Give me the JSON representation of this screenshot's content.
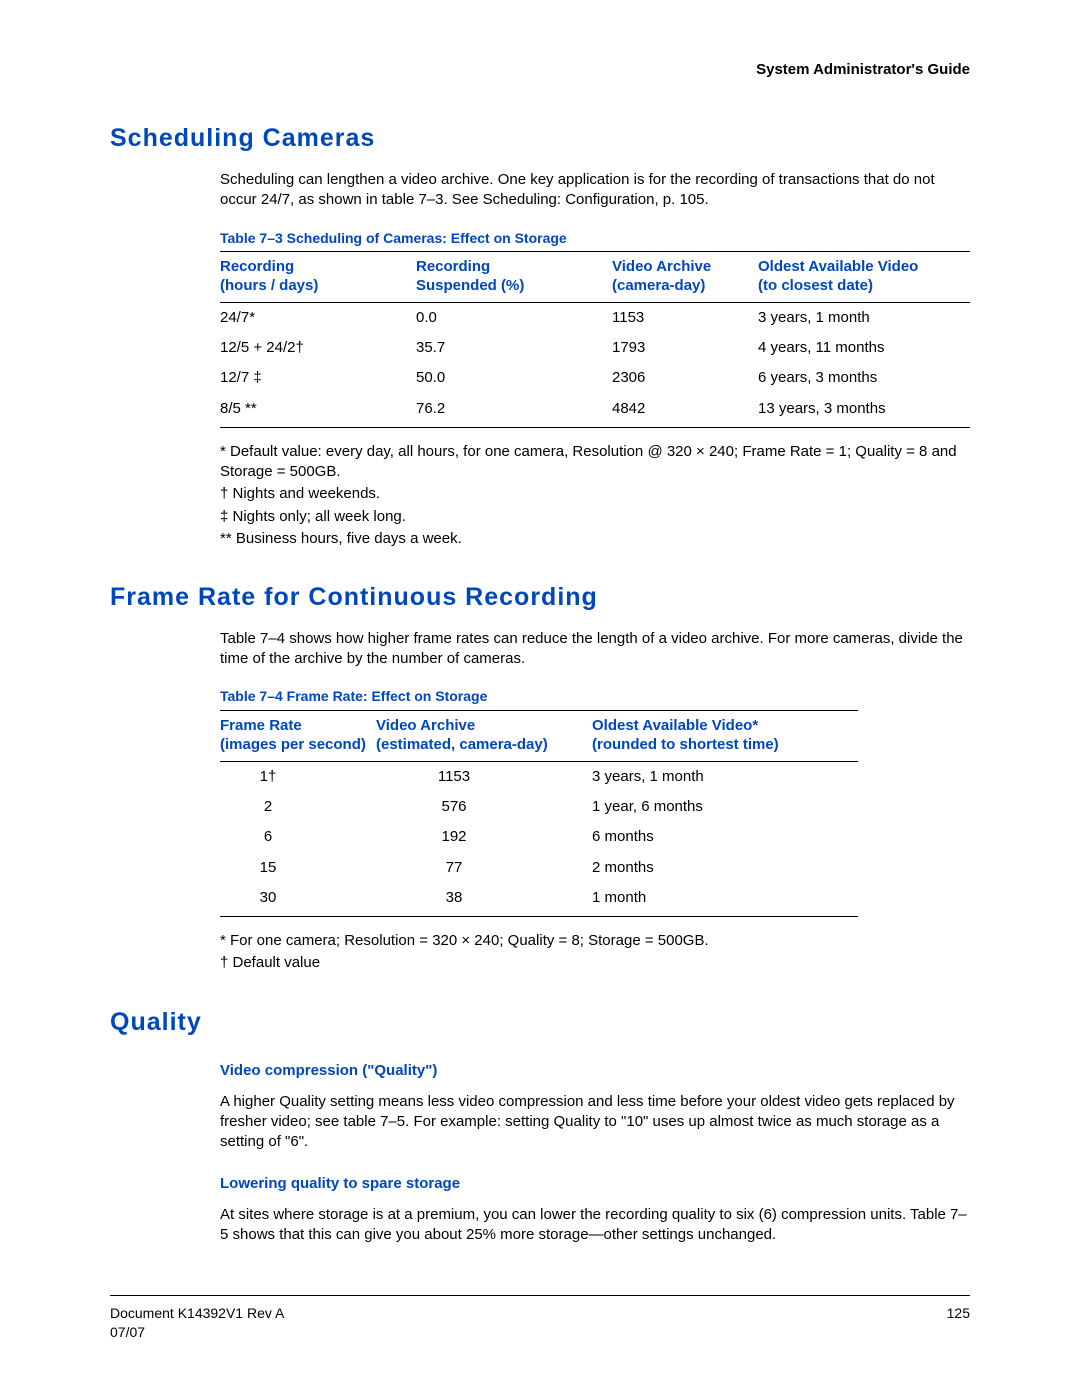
{
  "header": {
    "right": "System Administrator's Guide"
  },
  "s1": {
    "title": "Scheduling Cameras",
    "intro": "Scheduling can lengthen a video archive. One key application is for the recording of transactions that do not occur 24/7, as shown in table 7–3. See Scheduling: Configuration, p. 105.",
    "caption": "Table 7–3   Scheduling of Cameras: Effect on Storage",
    "cols": {
      "c1a": "Recording",
      "c1b": "(hours / days)",
      "c2a": "Recording",
      "c2b": "Suspended (%)",
      "c3a": "Video Archive",
      "c3b": "(camera-day)",
      "c4a": "Oldest Available Video",
      "c4b": "(to closest date)"
    },
    "rows": [
      {
        "a": "24/7*",
        "b": "0.0",
        "c": "1153",
        "d": "3 years, 1 month"
      },
      {
        "a": "12/5 + 24/2†",
        "b": "35.7",
        "c": "1793",
        "d": "4 years, 11 months"
      },
      {
        "a": "12/7 ‡",
        "b": "50.0",
        "c": "2306",
        "d": "6 years, 3 months"
      },
      {
        "a": "8/5 **",
        "b": "76.2",
        "c": "4842",
        "d": "13 years, 3 months"
      }
    ],
    "fn1": "* Default value: every day, all hours, for one camera, Resolution @ 320 × 240; Frame Rate = 1; Quality = 8 and Storage = 500GB.",
    "fn2": "† Nights and weekends.",
    "fn3": "‡ Nights only; all week long.",
    "fn4": "** Business hours, five days a week."
  },
  "s2": {
    "title": "Frame Rate for Continuous Recording",
    "intro": "Table 7–4 shows how higher frame rates can reduce the length of a video archive. For more cameras, divide the time of the archive by the number of cameras.",
    "caption": "Table 7–4   Frame Rate: Effect on Storage",
    "cols": {
      "c1a": "Frame Rate",
      "c1b": "(images per second)",
      "c2a": "Video Archive",
      "c2b": "(estimated, camera-day)",
      "c3a": "Oldest Available Video*",
      "c3b": "(rounded to shortest time)"
    },
    "rows": [
      {
        "a": "1†",
        "b": "1153",
        "c": "3 years, 1 month"
      },
      {
        "a": "2",
        "b": "576",
        "c": "1 year, 6 months"
      },
      {
        "a": "6",
        "b": "192",
        "c": "6 months"
      },
      {
        "a": "15",
        "b": "77",
        "c": "2 months"
      },
      {
        "a": "30",
        "b": "38",
        "c": "1 month"
      }
    ],
    "fn1": "* For one camera; Resolution = 320 × 240; Quality = 8; Storage = 500GB.",
    "fn2": "† Default value"
  },
  "s3": {
    "title": "Quality",
    "h1": "Video compression (\"Quality\")",
    "p1": "A higher Quality setting means less video compression and less time before your oldest video gets replaced by fresher video; see table 7–5. For example: setting Quality to \"10\" uses up almost twice as much storage as a setting of \"6\".",
    "h2": "Lowering quality to spare storage",
    "p2": "At sites where storage is at a premium, you can lower the recording quality to six (6) compression units. Table 7–5 shows that this can give you about 25% more storage—other settings unchanged."
  },
  "footer": {
    "doc": "Document K14392V1 Rev A",
    "date": "07/07",
    "page": "125"
  }
}
